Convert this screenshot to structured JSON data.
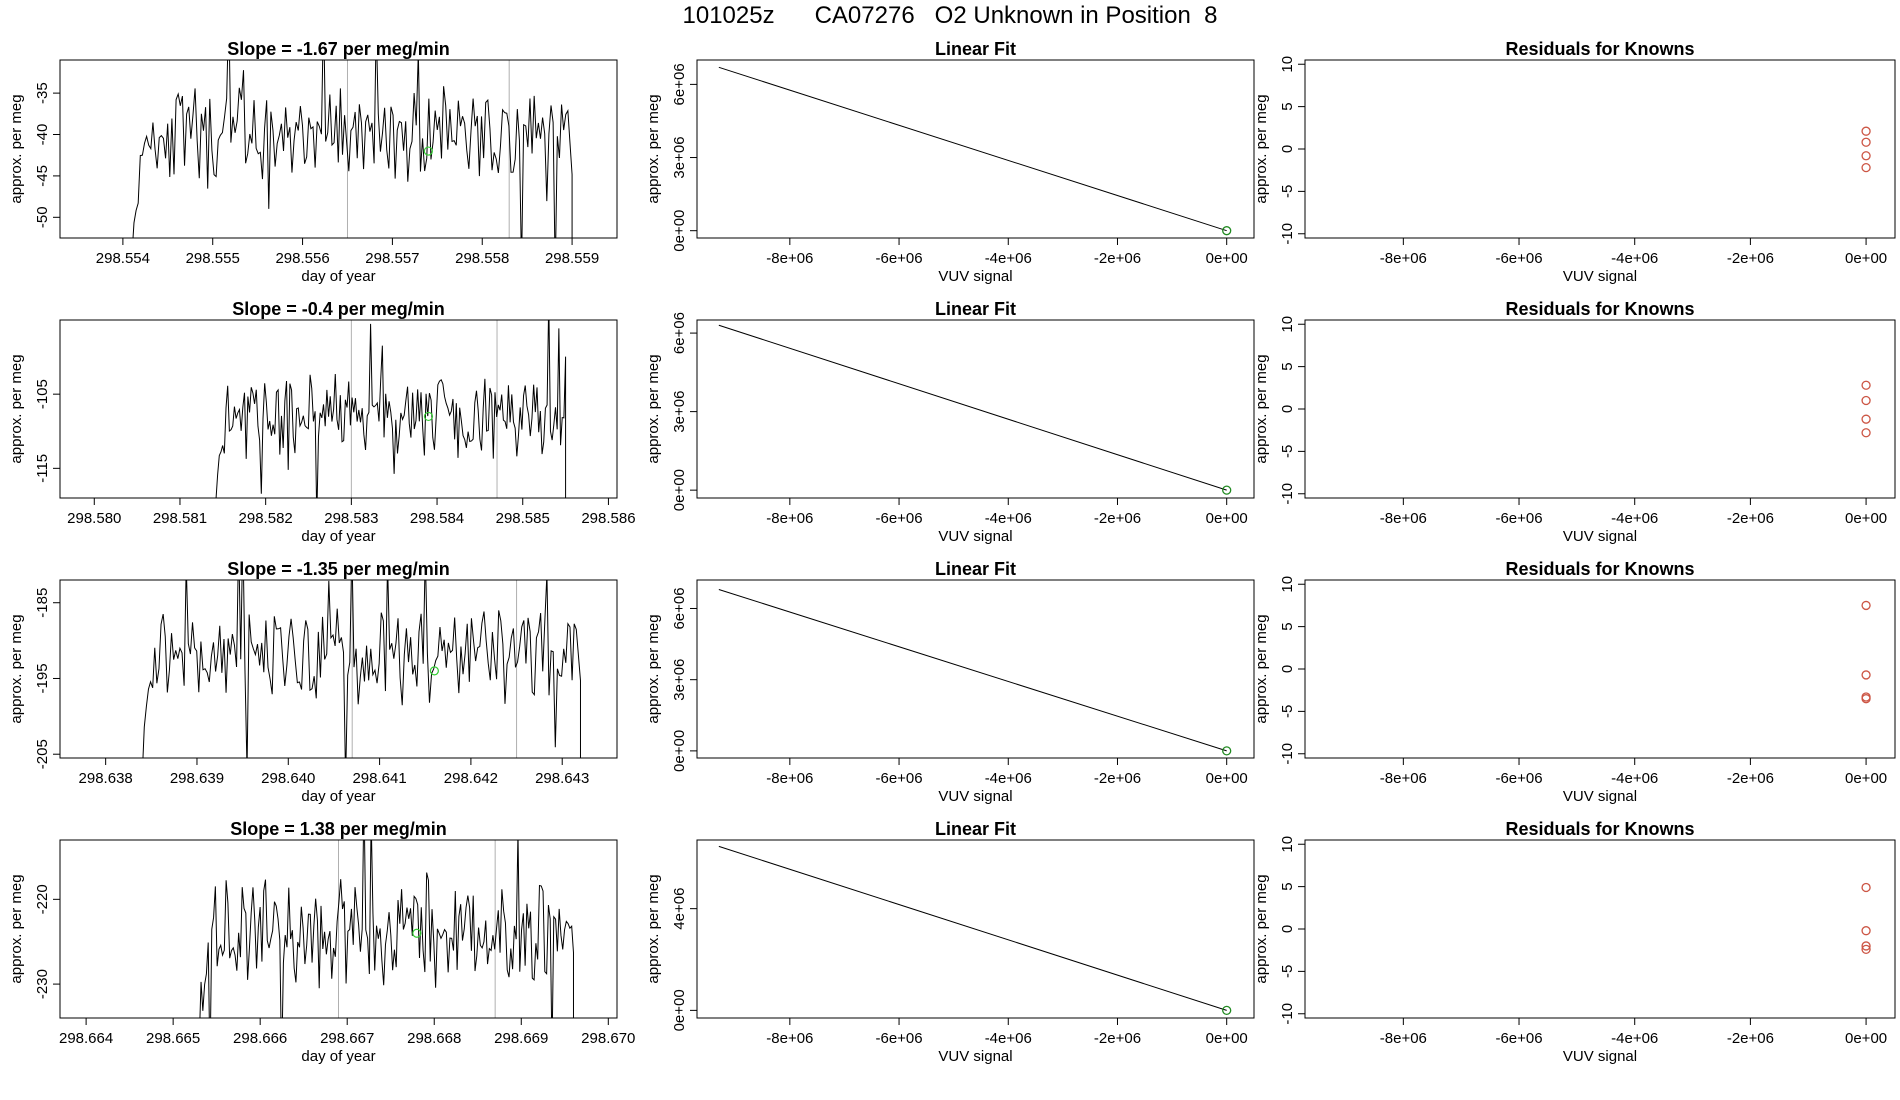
{
  "title": "101025z      CA07276   O2 Unknown in Position  8",
  "colors": {
    "line": "#000000",
    "vline": "#b0b0b0",
    "green": "#33cc33",
    "darkgreen": "#228b22",
    "residual": "#cc5544"
  },
  "chart_data": [
    {
      "type": "line",
      "title": "Slope =  -1.67  per meg/min",
      "xlabel": "day of year",
      "ylabel": "approx. per meg",
      "xlim": [
        298.5533,
        298.5595
      ],
      "ylim": [
        -52.5,
        -31
      ],
      "xticks": [
        "298.554",
        "298.555",
        "298.556",
        "298.557",
        "298.558",
        "298.559"
      ],
      "yticks": [
        "-35",
        "-40",
        "-45",
        "-50"
      ],
      "x_start": 298.5541,
      "x_end": 298.559,
      "n": 210,
      "mean": -40,
      "amp": 4.5,
      "seed": 11,
      "marker": [
        298.5574,
        -42
      ],
      "vlines": [
        298.5565,
        298.5583
      ]
    },
    {
      "type": "line",
      "title": "Slope =  -0.4  per meg/min",
      "xlabel": "day of year",
      "ylabel": "approx. per meg",
      "xlim": [
        298.5796,
        298.5861
      ],
      "ylim": [
        -119,
        -95
      ],
      "xticks": [
        "298.580",
        "298.581",
        "298.582",
        "298.583",
        "298.584",
        "298.585",
        "298.586"
      ],
      "yticks": [
        "-105",
        "-115"
      ],
      "x_start": 298.5814,
      "x_end": 298.5855,
      "n": 210,
      "mean": -108,
      "amp": 4.5,
      "seed": 23,
      "marker": [
        298.5839,
        -108
      ],
      "vlines": [
        298.583,
        298.5847
      ]
    },
    {
      "type": "line",
      "title": "Slope =  -1.35  per meg/min",
      "xlabel": "day of year",
      "ylabel": "approx. per meg",
      "xlim": [
        298.6375,
        298.6436
      ],
      "ylim": [
        -205.5,
        -182
      ],
      "xticks": [
        "298.638",
        "298.639",
        "298.640",
        "298.641",
        "298.642",
        "298.643"
      ],
      "yticks": [
        "-185",
        "-195",
        "-205"
      ],
      "x_start": 298.6384,
      "x_end": 298.6432,
      "n": 210,
      "mean": -192,
      "amp": 5,
      "seed": 37,
      "marker": [
        298.6416,
        -194
      ],
      "vlines": [
        298.6407,
        298.6425
      ]
    },
    {
      "type": "line",
      "title": "Slope =  1.38  per meg/min",
      "xlabel": "day of year",
      "ylabel": "approx. per meg",
      "xlim": [
        298.6637,
        298.6701
      ],
      "ylim": [
        -234,
        -213
      ],
      "xticks": [
        "298.664",
        "298.665",
        "298.666",
        "298.667",
        "298.668",
        "298.669",
        "298.670"
      ],
      "yticks": [
        "-220",
        "-230"
      ],
      "x_start": 298.6653,
      "x_end": 298.6696,
      "n": 210,
      "mean": -224,
      "amp": 5.5,
      "seed": 53,
      "marker": [
        298.6678,
        -224
      ],
      "vlines": [
        298.6669,
        298.6687
      ]
    },
    {
      "type": "line",
      "title": "Linear Fit",
      "xlabel": "VUV signal",
      "ylabel": "approx. per meg",
      "xlim": [
        -9700000,
        500000
      ],
      "ylim": [
        -300000,
        7000000
      ],
      "xticks_vals": [
        -8000000,
        -6000000,
        -4000000,
        -2000000,
        0
      ],
      "xticks": [
        "-8e+06",
        "-6e+06",
        "-4e+06",
        "-2e+06",
        "0e+00"
      ],
      "yticks_vals": [
        0,
        3000000,
        6000000
      ],
      "yticks": [
        "0e+00",
        "3e+06",
        "6e+06"
      ],
      "line": [
        [
          -9300000,
          6700000
        ],
        [
          0,
          0
        ]
      ],
      "point": [
        0,
        0
      ]
    },
    {
      "type": "line",
      "title": "Linear Fit",
      "xlabel": "VUV signal",
      "ylabel": "approx. per meg",
      "xlim": [
        -9700000,
        500000
      ],
      "ylim": [
        -300000,
        6500000
      ],
      "xticks_vals": [
        -8000000,
        -6000000,
        -4000000,
        -2000000,
        0
      ],
      "xticks": [
        "-8e+06",
        "-6e+06",
        "-4e+06",
        "-2e+06",
        "0e+00"
      ],
      "yticks_vals": [
        0,
        3000000,
        6000000
      ],
      "yticks": [
        "0e+00",
        "3e+06",
        "6e+06"
      ],
      "line": [
        [
          -9300000,
          6300000
        ],
        [
          0,
          0
        ]
      ],
      "point": [
        0,
        0
      ]
    },
    {
      "type": "line",
      "title": "Linear Fit",
      "xlabel": "VUV signal",
      "ylabel": "approx. per meg",
      "xlim": [
        -9700000,
        500000
      ],
      "ylim": [
        -300000,
        7200000
      ],
      "xticks_vals": [
        -8000000,
        -6000000,
        -4000000,
        -2000000,
        0
      ],
      "xticks": [
        "-8e+06",
        "-6e+06",
        "-4e+06",
        "-2e+06",
        "0e+00"
      ],
      "yticks_vals": [
        0,
        3000000,
        6000000
      ],
      "yticks": [
        "0e+00",
        "3e+06",
        "6e+06"
      ],
      "line": [
        [
          -9300000,
          6800000
        ],
        [
          0,
          0
        ]
      ],
      "point": [
        0,
        0
      ]
    },
    {
      "type": "line",
      "title": "Linear Fit",
      "xlabel": "VUV signal",
      "ylabel": "approx. per meg",
      "xlim": [
        -9700000,
        500000
      ],
      "ylim": [
        -300000,
        6700000
      ],
      "xticks_vals": [
        -8000000,
        -6000000,
        -4000000,
        -2000000,
        0
      ],
      "xticks": [
        "-8e+06",
        "-6e+06",
        "-4e+06",
        "-2e+06",
        "0e+00"
      ],
      "yticks_vals": [
        0,
        4000000
      ],
      "yticks": [
        "0e+00",
        "4e+06"
      ],
      "line": [
        [
          -9300000,
          6450000
        ],
        [
          0,
          0
        ]
      ],
      "point": [
        0,
        0
      ]
    },
    {
      "type": "scatter",
      "title": "Residuals for Knowns",
      "xlabel": "VUV signal",
      "ylabel": "approx. per meg",
      "xlim": [
        -9700000,
        500000
      ],
      "ylim": [
        -10.5,
        10.5
      ],
      "xticks_vals": [
        -8000000,
        -6000000,
        -4000000,
        -2000000,
        0
      ],
      "xticks": [
        "-8e+06",
        "-6e+06",
        "-4e+06",
        "-2e+06",
        "0e+00"
      ],
      "yticks_vals": [
        -10,
        -5,
        0,
        5,
        10
      ],
      "yticks": [
        "-10",
        "-5",
        "0",
        "5",
        "10"
      ],
      "points": [
        [
          0,
          2.1
        ],
        [
          0,
          0.8
        ],
        [
          0,
          -0.8
        ],
        [
          0,
          -2.2
        ]
      ]
    },
    {
      "type": "scatter",
      "title": "Residuals for Knowns",
      "xlabel": "VUV signal",
      "ylabel": "approx. per meg",
      "xlim": [
        -9700000,
        500000
      ],
      "ylim": [
        -10.5,
        10.5
      ],
      "xticks_vals": [
        -8000000,
        -6000000,
        -4000000,
        -2000000,
        0
      ],
      "xticks": [
        "-8e+06",
        "-6e+06",
        "-4e+06",
        "-2e+06",
        "0e+00"
      ],
      "yticks_vals": [
        -10,
        -5,
        0,
        5,
        10
      ],
      "yticks": [
        "-10",
        "-5",
        "0",
        "5",
        "10"
      ],
      "points": [
        [
          0,
          2.8
        ],
        [
          0,
          1.0
        ],
        [
          0,
          -1.2
        ],
        [
          0,
          -2.8
        ]
      ]
    },
    {
      "type": "scatter",
      "title": "Residuals for Knowns",
      "xlabel": "VUV signal",
      "ylabel": "approx. per meg",
      "xlim": [
        -9700000,
        500000
      ],
      "ylim": [
        -10.5,
        10.5
      ],
      "xticks_vals": [
        -8000000,
        -6000000,
        -4000000,
        -2000000,
        0
      ],
      "xticks": [
        "-8e+06",
        "-6e+06",
        "-4e+06",
        "-2e+06",
        "0e+00"
      ],
      "yticks_vals": [
        -10,
        -5,
        0,
        5,
        10
      ],
      "yticks": [
        "-10",
        "-5",
        "0",
        "5",
        "10"
      ],
      "points": [
        [
          0,
          7.5
        ],
        [
          0,
          -0.7
        ],
        [
          0,
          -3.3
        ],
        [
          0,
          -3.5
        ]
      ]
    },
    {
      "type": "scatter",
      "title": "Residuals for Knowns",
      "xlabel": "VUV signal",
      "ylabel": "approx. per meg",
      "xlim": [
        -9700000,
        500000
      ],
      "ylim": [
        -10.5,
        10.5
      ],
      "xticks_vals": [
        -8000000,
        -6000000,
        -4000000,
        -2000000,
        0
      ],
      "xticks": [
        "-8e+06",
        "-6e+06",
        "-4e+06",
        "-2e+06",
        "0e+00"
      ],
      "yticks_vals": [
        -10,
        -5,
        0,
        5,
        10
      ],
      "yticks": [
        "-10",
        "-5",
        "0",
        "5",
        "10"
      ],
      "points": [
        [
          0,
          4.9
        ],
        [
          0,
          -0.2
        ],
        [
          0,
          -2.0
        ],
        [
          0,
          -2.4
        ]
      ]
    }
  ]
}
